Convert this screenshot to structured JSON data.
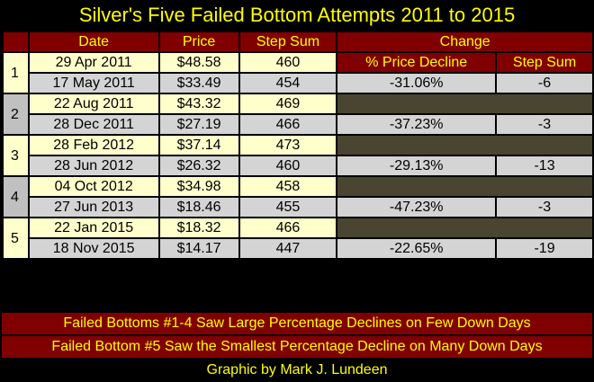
{
  "title": "Silver's Five Failed Bottom Attempts 2011 to 2015",
  "headers": {
    "date": "Date",
    "price": "Price",
    "step_sum": "Step Sum",
    "change": "Change",
    "pct_decline": "% Price Decline",
    "change_step_sum": "Step Sum"
  },
  "groups": [
    {
      "label": "1",
      "top": {
        "date": "29 Apr 2011",
        "price": "$48.58",
        "step": "460"
      },
      "bottom": {
        "date": "17 May 2011",
        "price": "$33.49",
        "step": "454",
        "pct": "-31.06%",
        "ss": "-6"
      }
    },
    {
      "label": "2",
      "top": {
        "date": "22 Aug 2011",
        "price": "$43.32",
        "step": "469"
      },
      "bottom": {
        "date": "28 Dec 2011",
        "price": "$27.19",
        "step": "466",
        "pct": "-37.23%",
        "ss": "-3"
      }
    },
    {
      "label": "3",
      "top": {
        "date": "28 Feb 2012",
        "price": "$37.14",
        "step": "473"
      },
      "bottom": {
        "date": "28 Jun 2012",
        "price": "$26.32",
        "step": "460",
        "pct": "-29.13%",
        "ss": "-13"
      }
    },
    {
      "label": "4",
      "top": {
        "date": "04 Oct 2012",
        "price": "$34.98",
        "step": "458"
      },
      "bottom": {
        "date": "27 Jun 2013",
        "price": "$18.46",
        "step": "455",
        "pct": "-47.23%",
        "ss": "-3"
      }
    },
    {
      "label": "5",
      "top": {
        "date": "22 Jan 2015",
        "price": "$18.32",
        "step": "466"
      },
      "bottom": {
        "date": "18 Nov 2015",
        "price": "$14.17",
        "step": "447",
        "pct": "-22.65%",
        "ss": "-19"
      }
    }
  ],
  "footnotes": [
    "Failed Bottoms #1-4 Saw Large Percentage Declines on Few Down Days",
    "Failed Bottom #5 Saw the Smallest Percentage Decline on Many Down Days"
  ],
  "credit": "Graphic by Mark J. Lundeen",
  "colors": {
    "header_bg": "#800000",
    "header_text": "#ffff00",
    "row_light": "#ffffcc",
    "row_gray": "#d4d4d4",
    "blank_cell": "#4a4530"
  }
}
